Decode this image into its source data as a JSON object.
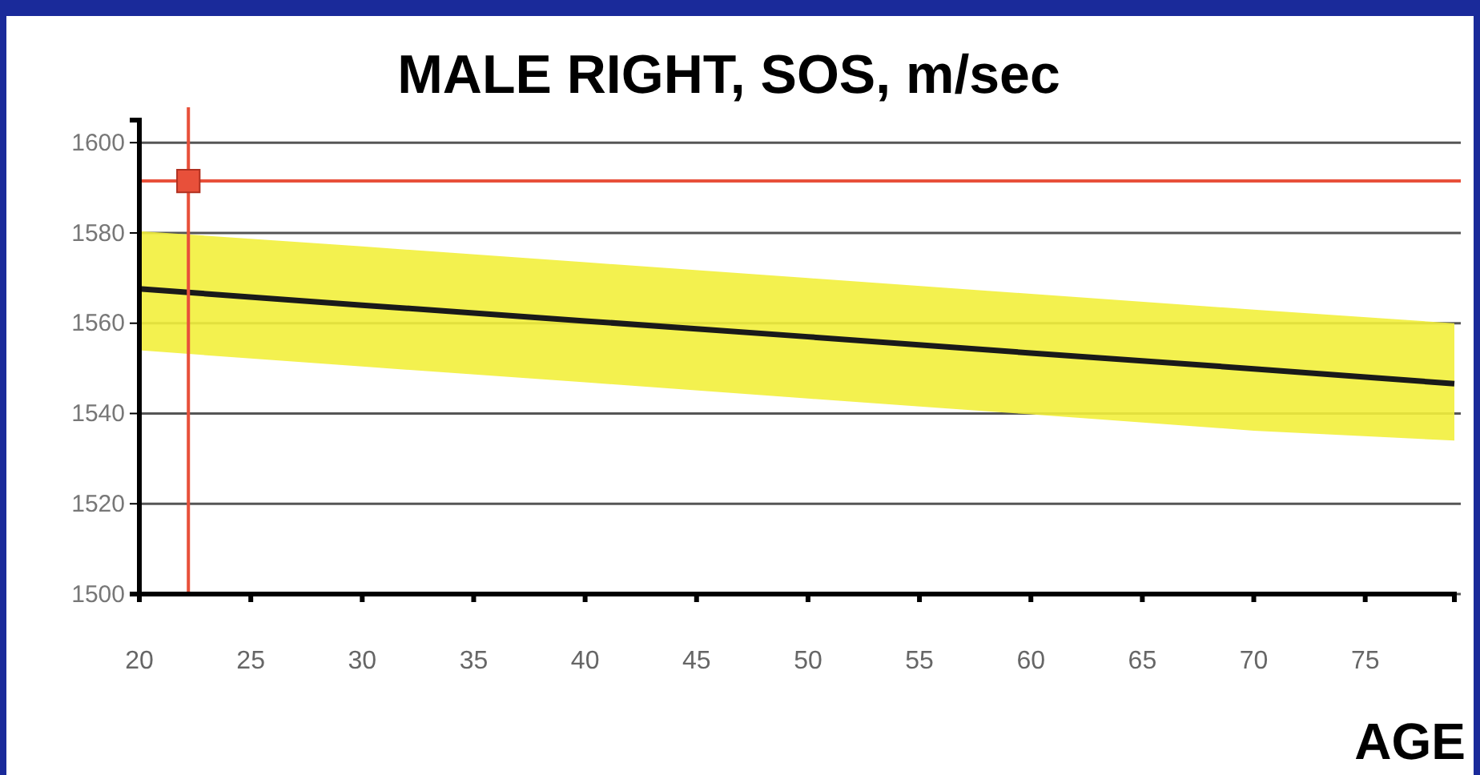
{
  "chart_data": {
    "type": "line",
    "title": "MALE RIGHT, SOS, m/sec",
    "xlabel": "AGE",
    "x": [
      20,
      30,
      40,
      50,
      60,
      70,
      79
    ],
    "series": [
      {
        "type": "line",
        "color": "#1a1a1a",
        "values": [
          1567.6,
          1564,
          1560.5,
          1557,
          1553.4,
          1549.9,
          1546.6
        ],
        "lower": [
          1554,
          1550.4,
          1546.9,
          1543.3,
          1539.8,
          1536.2,
          1534
        ],
        "upper": [
          1580.4,
          1577,
          1573.5,
          1570,
          1566.5,
          1563,
          1560
        ]
      },
      {
        "type": "scatter",
        "color": "#e8503a",
        "x": [
          22.2
        ],
        "values": [
          1591.5
        ],
        "marker": "square"
      }
    ],
    "xlim": [
      20,
      79
    ],
    "xticks": [
      20,
      25,
      30,
      35,
      40,
      45,
      50,
      55,
      60,
      65,
      70,
      75
    ],
    "ylim": [
      1500,
      1605
    ],
    "yticks": [
      1500,
      1520,
      1540,
      1560,
      1580,
      1600
    ],
    "ref_lines": [
      {
        "axis": "y",
        "value": 1591.5,
        "color": "#e8503a"
      },
      {
        "axis": "x",
        "value": 22.2,
        "color": "#e8503a"
      }
    ],
    "grid": "y",
    "line_style": "solid"
  }
}
